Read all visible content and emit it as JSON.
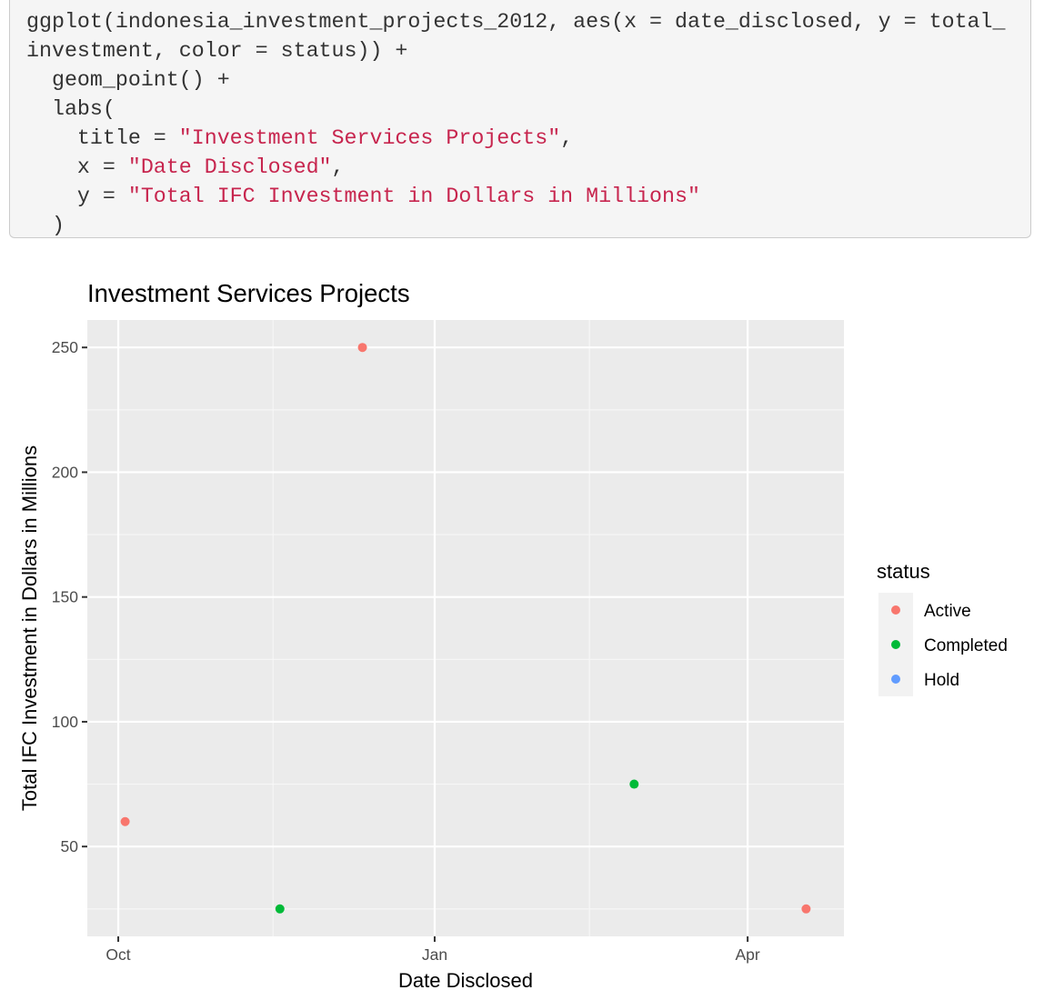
{
  "code": {
    "lines": [
      [
        {
          "t": "ggplot(indonesia_investment_projects_2012, aes(x = date_disclosed, y = total_"
        }
      ],
      [
        {
          "t": "investment, color = status)) +"
        }
      ],
      [
        {
          "t": "  geom_point() +"
        }
      ],
      [
        {
          "t": "  labs("
        }
      ],
      [
        {
          "t": "    title = "
        },
        {
          "t": "\"Investment Services Projects\"",
          "s": 1
        },
        {
          "t": ","
        }
      ],
      [
        {
          "t": "    x = "
        },
        {
          "t": "\"Date Disclosed\"",
          "s": 1
        },
        {
          "t": ","
        }
      ],
      [
        {
          "t": "    y = "
        },
        {
          "t": "\"Total IFC Investment in Dollars in Millions\"",
          "s": 1
        }
      ],
      [
        {
          "t": "  )"
        }
      ]
    ]
  },
  "chart_data": {
    "type": "scatter",
    "title": "Investment Services Projects",
    "xlabel": "Date Disclosed",
    "ylabel": "Total IFC Investment in Dollars in Millions",
    "x_type": "date",
    "xlim": [
      "2011-09-22",
      "2012-04-29"
    ],
    "ylim": [
      14,
      261
    ],
    "x_major_ticks": [
      {
        "date": "2011-10-01",
        "label": "Oct"
      },
      {
        "date": "2012-01-01",
        "label": "Jan"
      },
      {
        "date": "2012-04-01",
        "label": "Apr"
      }
    ],
    "x_minor_ticks": [
      "2011-11-15",
      "2012-02-15"
    ],
    "y_major_ticks": [
      50,
      100,
      150,
      200,
      250
    ],
    "y_minor_ticks": [
      25,
      75,
      125,
      175,
      225
    ],
    "grid": true,
    "legend": {
      "title": "status",
      "position": "right",
      "entries": [
        {
          "name": "Active",
          "color": "#F8766D"
        },
        {
          "name": "Completed",
          "color": "#00BA38"
        },
        {
          "name": "Hold",
          "color": "#619CFF"
        }
      ]
    },
    "series": [
      {
        "name": "Active",
        "color": "#F8766D",
        "points": [
          {
            "x": "2011-10-03",
            "y": 60
          },
          {
            "x": "2011-12-11",
            "y": 250
          },
          {
            "x": "2012-04-18",
            "y": 25
          }
        ]
      },
      {
        "name": "Completed",
        "color": "#00BA38",
        "points": [
          {
            "x": "2011-11-17",
            "y": 25
          },
          {
            "x": "2012-02-28",
            "y": 75
          }
        ]
      },
      {
        "name": "Hold",
        "color": "#619CFF",
        "points": []
      }
    ]
  }
}
